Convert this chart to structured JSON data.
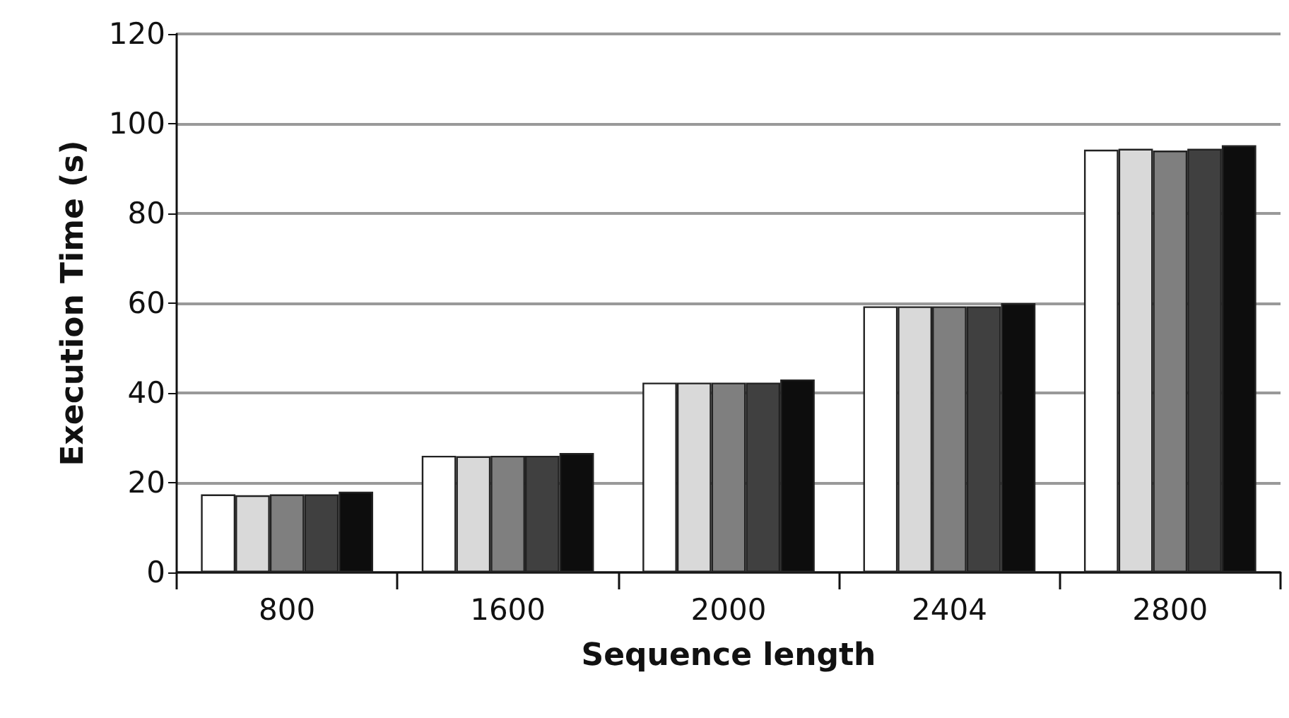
{
  "chart_data": {
    "type": "bar",
    "xlabel": "Sequence length",
    "ylabel": "Execution Time (s)",
    "categories": [
      "800",
      "1600",
      "2000",
      "2404",
      "2800"
    ],
    "series": [
      {
        "color": "#ffffff",
        "values": [
          17.4,
          26,
          42.3,
          59.3,
          94.2
        ]
      },
      {
        "color": "#d9d9d9",
        "values": [
          17.2,
          25.9,
          42.3,
          59.3,
          94.4
        ]
      },
      {
        "color": "#7f7f7f",
        "values": [
          17.4,
          26,
          42.3,
          59.3,
          94
        ]
      },
      {
        "color": "#404040",
        "values": [
          17.4,
          26,
          42.3,
          59.3,
          94.4
        ]
      },
      {
        "color": "#0d0d0d",
        "values": [
          18,
          26.6,
          43,
          60,
          95.2
        ]
      }
    ],
    "ylim": [
      0,
      120
    ],
    "yticks": [
      0,
      20,
      40,
      60,
      80,
      100,
      120
    ],
    "grid": "y"
  }
}
